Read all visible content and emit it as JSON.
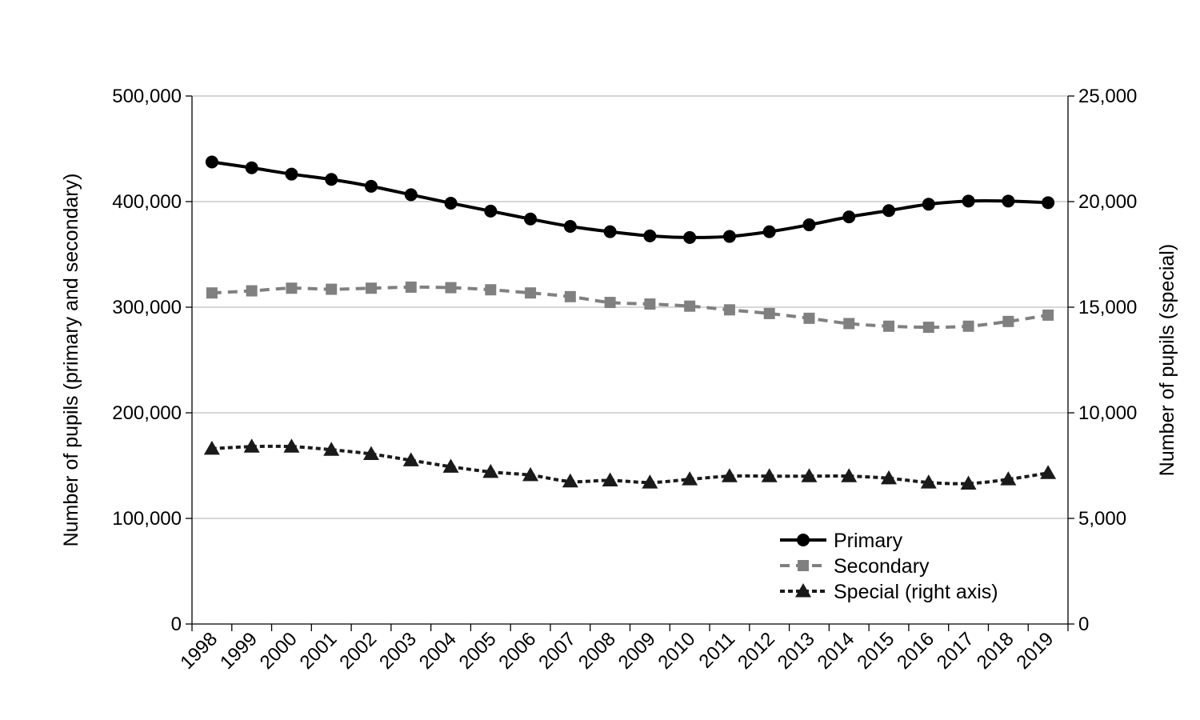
{
  "chart_data": {
    "type": "line",
    "title": "",
    "xlabel": "",
    "ylabel": "Number of pupils (primary and secondary)",
    "y2label": "Number of pupils (special)",
    "x": [
      "1998",
      "1999",
      "2000",
      "2001",
      "2002",
      "2003",
      "2004",
      "2005",
      "2006",
      "2007",
      "2008",
      "2009",
      "2010",
      "2011",
      "2012",
      "2013",
      "2014",
      "2015",
      "2016",
      "2017",
      "2018",
      "2019"
    ],
    "ylim": [
      0,
      500000
    ],
    "y2lim": [
      0,
      25000
    ],
    "yticks": [
      "0",
      "100,000",
      "200,000",
      "300,000",
      "400,000",
      "500,000"
    ],
    "y2ticks": [
      "0",
      "5,000",
      "10,000",
      "15,000",
      "20,000",
      "25,000"
    ],
    "grid": true,
    "legend_position": "bottom-right",
    "series": [
      {
        "name": "Primary",
        "axis": "left",
        "color": "#000000",
        "line_style": "solid",
        "marker": "circle",
        "values": [
          437500,
          432000,
          426000,
          421000,
          414500,
          406500,
          398500,
          391000,
          383500,
          376500,
          371500,
          367500,
          366000,
          367000,
          371500,
          378000,
          385500,
          391500,
          397500,
          400500,
          400500,
          399000
        ]
      },
      {
        "name": "Secondary",
        "axis": "left",
        "color": "#808080",
        "line_style": "dashed",
        "marker": "square",
        "values": [
          313500,
          315500,
          318000,
          317000,
          318000,
          319000,
          318500,
          316500,
          313500,
          310000,
          304500,
          303000,
          301000,
          297500,
          294000,
          289500,
          284500,
          282000,
          281000,
          282000,
          286500,
          292500
        ]
      },
      {
        "name": "Special (right axis)",
        "axis": "right",
        "color": "#1a1a1a",
        "line_style": "dotted",
        "marker": "triangle",
        "values": [
          8300,
          8400,
          8400,
          8250,
          8050,
          7750,
          7450,
          7200,
          7050,
          6750,
          6800,
          6700,
          6850,
          7000,
          7000,
          7000,
          7000,
          6900,
          6700,
          6650,
          6850,
          7150
        ]
      }
    ]
  }
}
